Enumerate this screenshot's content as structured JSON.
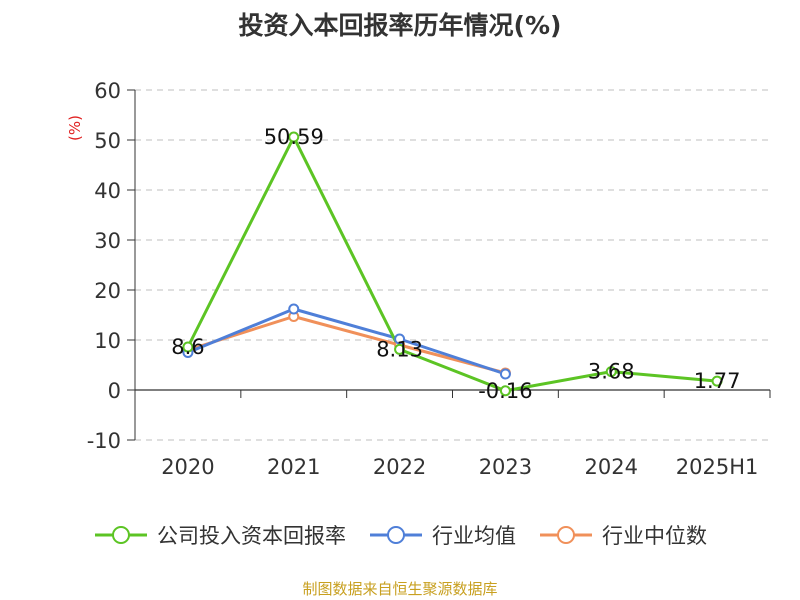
{
  "chart_data": {
    "type": "line",
    "title": "投资入本回报率历年情况(%)",
    "ylabel": "(%)",
    "ylim": [
      -10,
      60
    ],
    "yticks": [
      -10,
      0,
      10,
      20,
      30,
      40,
      50,
      60
    ],
    "categories": [
      "2020",
      "2021",
      "2022",
      "2023",
      "2024",
      "2025H1"
    ],
    "grid": true,
    "legend_position": "bottom",
    "series": [
      {
        "name": "公司投入资本回报率",
        "color": "#5cc424",
        "values": [
          8.6,
          50.59,
          8.13,
          -0.16,
          3.68,
          1.77
        ],
        "labels": [
          "8.6",
          "50.59",
          "8.13",
          "-0.16",
          "3.68",
          "1.77"
        ]
      },
      {
        "name": "行业均值",
        "color": "#4f7fd8",
        "values": [
          7.5,
          16.2,
          10.2,
          3.2,
          null,
          null
        ]
      },
      {
        "name": "行业中位数",
        "color": "#f0905a",
        "values": [
          8.0,
          14.7,
          9.0,
          3.4,
          null,
          null
        ]
      }
    ]
  },
  "source": "制图数据来自恒生聚源数据库"
}
